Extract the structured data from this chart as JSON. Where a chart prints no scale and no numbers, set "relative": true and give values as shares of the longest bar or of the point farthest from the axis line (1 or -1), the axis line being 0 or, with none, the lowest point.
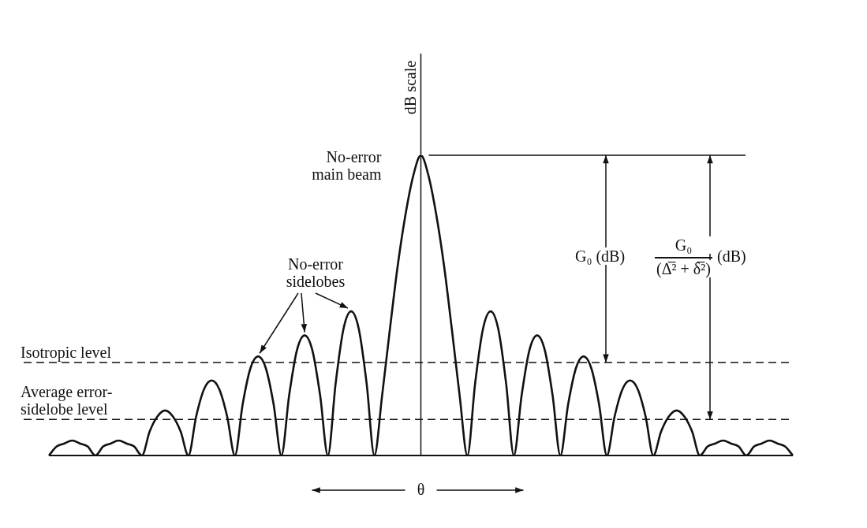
{
  "chart_data": {
    "type": "line",
    "relative": true,
    "xlabel": "θ",
    "ylabel": "dB scale",
    "categories": [
      null,
      null,
      null,
      null,
      null,
      null,
      null,
      null,
      null,
      null,
      null,
      null,
      null,
      null,
      null,
      null,
      null,
      null,
      null,
      null,
      null,
      null,
      null,
      null,
      null,
      null,
      null,
      null,
      null,
      null,
      null,
      null,
      null,
      null,
      null,
      null,
      null,
      null,
      null,
      null,
      null,
      null,
      null,
      null,
      null,
      null,
      null,
      null,
      null,
      null,
      null,
      null,
      null,
      null,
      null,
      null,
      null,
      null,
      null,
      null,
      null,
      null,
      null,
      null,
      null,
      null,
      null,
      null,
      null,
      null,
      null,
      null,
      null,
      null,
      null,
      null,
      null,
      null,
      null,
      null,
      null,
      null,
      null,
      null,
      null,
      null,
      null,
      null,
      null,
      null,
      null,
      null,
      null,
      null,
      null,
      null,
      null
    ],
    "series": [
      {
        "color": "#111111",
        "values": [
          0,
          0.03,
          0.04,
          0.05,
          0.04,
          0.03,
          0,
          0.03,
          0.04,
          0.05,
          0.04,
          0.03,
          0,
          0.08,
          0.13,
          0.15,
          0.13,
          0.08,
          0,
          0.13,
          0.22,
          0.25,
          0.22,
          0.13,
          0,
          0.17,
          0.29,
          0.33,
          0.29,
          0.17,
          0,
          0.2,
          0.35,
          0.4,
          0.35,
          0.2,
          0,
          0.24,
          0.42,
          0.48,
          0.42,
          0.24,
          0,
          0.2,
          0.42,
          0.63,
          0.8,
          0.93,
          1,
          0.93,
          0.8,
          0.63,
          0.42,
          0.2,
          0,
          0.24,
          0.42,
          0.48,
          0.42,
          0.24,
          0,
          0.2,
          0.35,
          0.4,
          0.35,
          0.2,
          0,
          0.17,
          0.29,
          0.33,
          0.29,
          0.17,
          0,
          0.13,
          0.22,
          0.25,
          0.22,
          0.13,
          0,
          0.08,
          0.13,
          0.15,
          0.13,
          0.08,
          0,
          0.03,
          0.04,
          0.05,
          0.04,
          0.03,
          0,
          0.03,
          0.04,
          0.05,
          0.04,
          0.03,
          0
        ]
      }
    ],
    "ref_lines": [
      {
        "axis": "y",
        "value": 1,
        "line_style": "solid"
      },
      {
        "axis": "y",
        "value": 0.31,
        "label": "Isotropic level",
        "line_style": "dashed"
      },
      {
        "axis": "y",
        "value": 0.12,
        "label": "Average error-sidelobe level",
        "line_style": "dashed"
      }
    ],
    "annotations": [
      "No-error main beam",
      "No-error sidelobes",
      "G₀ (dB)",
      "G₀",
      "(Δ̅² + δ̅²)",
      "(dB)"
    ],
    "legend": false,
    "marker": "none",
    "line_style": "solid"
  }
}
